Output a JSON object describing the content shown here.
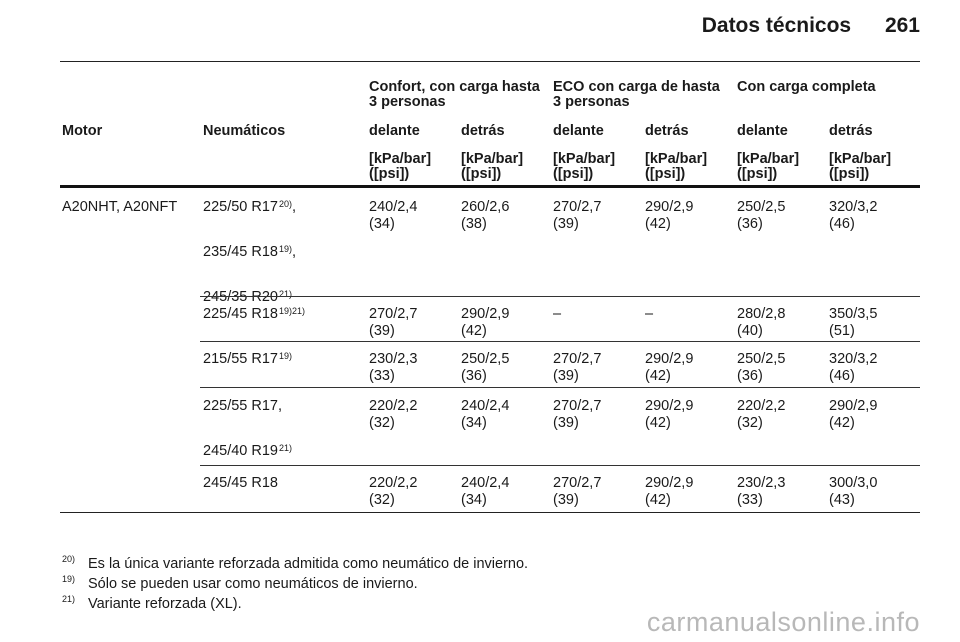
{
  "header": {
    "title": "Datos técnicos",
    "page_number": "261"
  },
  "table": {
    "group_headers": [
      {
        "line1": "Confort, con carga hasta",
        "line2": "3 personas"
      },
      {
        "line1": "ECO con carga de hasta",
        "line2": "3 personas"
      },
      {
        "line1": "Con carga completa",
        "line2": ""
      }
    ],
    "columns": [
      "Motor",
      "Neumáticos",
      "delante",
      "detrás",
      "delante",
      "detrás",
      "delante",
      "detrás"
    ],
    "unit_line1": "[kPa/bar]",
    "unit_line2": "([psi])",
    "motor": "A20NHT, A20NFT",
    "rows": [
      {
        "tires": [
          {
            "text": "225/50 R17",
            "sup": "20)",
            "suffix": ","
          },
          {
            "text": "235/45 R18",
            "sup": "19)",
            "suffix": ","
          },
          {
            "text": "245/35 R20",
            "sup": "21)",
            "suffix": ""
          }
        ],
        "values": [
          [
            "240/2,4",
            "(34)"
          ],
          [
            "260/2,6",
            "(38)"
          ],
          [
            "270/2,7",
            "(39)"
          ],
          [
            "290/2,9",
            "(42)"
          ],
          [
            "250/2,5",
            "(36)"
          ],
          [
            "320/3,2",
            "(46)"
          ]
        ]
      },
      {
        "tires": [
          {
            "text": "225/45 R18",
            "sup": "19)21)",
            "suffix": ""
          }
        ],
        "values": [
          [
            "270/2,7",
            "(39)"
          ],
          [
            "290/2,9",
            "(42)"
          ],
          [
            "–",
            ""
          ],
          [
            "–",
            ""
          ],
          [
            "280/2,8",
            "(40)"
          ],
          [
            "350/3,5",
            "(51)"
          ]
        ]
      },
      {
        "tires": [
          {
            "text": "215/55 R17",
            "sup": "19)",
            "suffix": ""
          }
        ],
        "values": [
          [
            "230/2,3",
            "(33)"
          ],
          [
            "250/2,5",
            "(36)"
          ],
          [
            "270/2,7",
            "(39)"
          ],
          [
            "290/2,9",
            "(42)"
          ],
          [
            "250/2,5",
            "(36)"
          ],
          [
            "320/3,2",
            "(46)"
          ]
        ]
      },
      {
        "tires": [
          {
            "text": "225/55 R17",
            "sup": "",
            "suffix": ","
          },
          {
            "text": "245/40 R19",
            "sup": "21)",
            "suffix": ""
          }
        ],
        "values": [
          [
            "220/2,2",
            "(32)"
          ],
          [
            "240/2,4",
            "(34)"
          ],
          [
            "270/2,7",
            "(39)"
          ],
          [
            "290/2,9",
            "(42)"
          ],
          [
            "220/2,2",
            "(32)"
          ],
          [
            "290/2,9",
            "(42)"
          ]
        ]
      },
      {
        "tires": [
          {
            "text": "245/45 R18",
            "sup": "",
            "suffix": ""
          }
        ],
        "values": [
          [
            "220/2,2",
            "(32)"
          ],
          [
            "240/2,4",
            "(34)"
          ],
          [
            "270/2,7",
            "(39)"
          ],
          [
            "290/2,9",
            "(42)"
          ],
          [
            "230/2,3",
            "(33)"
          ],
          [
            "300/3,0",
            "(43)"
          ]
        ]
      }
    ]
  },
  "footnotes": [
    {
      "num": "20)",
      "text": "Es la única variante reforzada admitida como neumático de invierno."
    },
    {
      "num": "19)",
      "text": "Sólo se pueden usar como neumáticos de invierno."
    },
    {
      "num": "21)",
      "text": "Variante reforzada (XL)."
    }
  ],
  "watermark": "carmanualsonline.info"
}
